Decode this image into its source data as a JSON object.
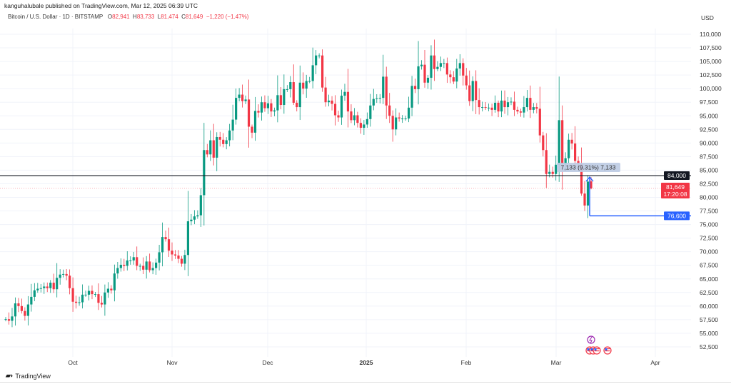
{
  "header": {
    "published": "kanguhalubale published on TradingView.com, Mar 12, 2025 06:39 UTC"
  },
  "legend": {
    "symbol": "Bitcoin / U.S. Dollar · 1D · BITSTAMP",
    "o_label": "O",
    "o": "82,941",
    "h_label": "H",
    "h": "83,733",
    "l_label": "L",
    "l": "81,474",
    "c_label": "C",
    "c": "81,649",
    "change": "−1,220 (−1.47%)"
  },
  "axis": {
    "currency": "USD"
  },
  "footer": {
    "brand": "TradingView"
  },
  "colors": {
    "up": "#089981",
    "down": "#f23645",
    "level_line": "#131722",
    "measure": "#2962ff"
  },
  "chart_data": {
    "type": "candlestick",
    "title": "",
    "interval": "1D",
    "start_date": "2024-09-10",
    "end_date": "2025-03-12",
    "first_open": 57600,
    "closes_k": [
      57.6,
      57.3,
      58.1,
      60.5,
      60.0,
      59.1,
      58.2,
      60.3,
      61.7,
      62.9,
      63.2,
      63.3,
      63.6,
      63.3,
      64.3,
      63.1,
      65.2,
      65.8,
      65.9,
      65.6,
      63.3,
      60.8,
      60.6,
      60.7,
      62.1,
      62.1,
      62.8,
      62.2,
      62.2,
      60.6,
      60.3,
      62.5,
      63.2,
      62.9,
      66.0,
      67.0,
      67.6,
      67.4,
      68.4,
      68.4,
      69.0,
      67.4,
      67.4,
      66.7,
      68.2,
      66.6,
      67.0,
      68.0,
      69.9,
      72.7,
      72.3,
      70.2,
      69.5,
      69.3,
      68.7,
      67.8,
      69.4,
      75.6,
      75.9,
      76.5,
      76.7,
      80.4,
      88.7,
      87.9,
      90.5,
      87.3,
      91.1,
      90.6,
      89.8,
      90.5,
      92.3,
      94.3,
      98.3,
      98.9,
      97.7,
      98.0,
      93.0,
      91.9,
      95.9,
      95.6,
      97.5,
      96.4,
      97.3,
      95.8,
      96.0,
      98.8,
      97.0,
      99.9,
      99.9,
      101.2,
      97.4,
      96.6,
      101.1,
      100.0,
      101.4,
      101.4,
      104.3,
      106.1,
      106.1,
      100.2,
      97.5,
      97.8,
      97.2,
      95.1,
      94.7,
      98.7,
      99.4,
      95.8,
      94.2,
      95.1,
      93.7,
      92.8,
      93.4,
      94.4,
      96.9,
      98.1,
      98.2,
      98.3,
      102.2,
      96.9,
      95.0,
      92.5,
      94.7,
      94.5,
      94.5,
      94.5,
      96.5,
      100.5,
      99.9,
      104.1,
      104.4,
      101.1,
      102.0,
      106.1,
      103.6,
      104.0,
      104.7,
      104.7,
      102.6,
      102.1,
      101.3,
      103.7,
      104.7,
      102.4,
      100.6,
      97.7,
      101.4,
      97.9,
      96.6,
      96.6,
      96.5,
      96.5,
      96.1,
      97.4,
      95.8,
      97.8,
      96.6,
      97.5,
      97.6,
      96.1,
      95.8,
      95.6,
      96.6,
      98.3,
      96.1,
      96.6,
      96.3,
      91.4,
      88.7,
      84.3,
      84.7,
      84.3,
      86.0,
      94.2,
      86.1,
      87.2,
      90.6,
      89.9,
      86.7,
      86.1,
      80.7,
      78.5,
      82.9,
      81.649
    ],
    "last_candle": {
      "open": 82941,
      "high": 83733,
      "low": 81474,
      "close": 81649
    },
    "x_ticks": [
      "Oct",
      "Nov",
      "Dec",
      "2025",
      "Feb",
      "Mar",
      "Apr"
    ],
    "y_ticks": [
      "110,000",
      "107,500",
      "105,000",
      "102,500",
      "100,000",
      "97,500",
      "95,000",
      "92,500",
      "90,000",
      "87,500",
      "85,000",
      "82,500",
      "80,000",
      "77,500",
      "75,000",
      "72,500",
      "70,000",
      "67,500",
      "65,000",
      "62,500",
      "60,000",
      "57,500",
      "55,000",
      "52,500"
    ],
    "ylim": [
      51000,
      112000
    ],
    "grid": true,
    "horizontal_level": {
      "value": 84000,
      "label": "84,000"
    },
    "last_price": {
      "value": 81649,
      "label": "81,649",
      "countdown": "17:20:08"
    },
    "measure": {
      "from": 76600,
      "from_label": "76,600",
      "text": "7,133 (9.31%) 7,133"
    }
  }
}
